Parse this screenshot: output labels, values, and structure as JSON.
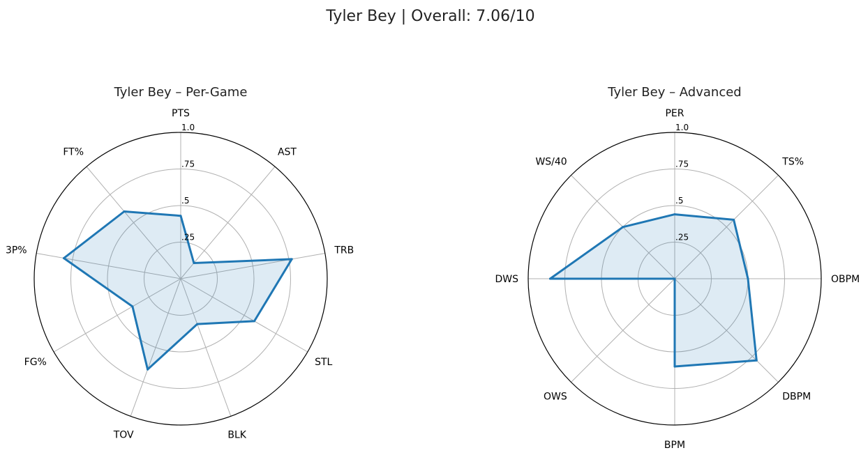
{
  "figure": {
    "suptitle": "Tyler Bey | Overall: 7.06/10"
  },
  "chart_data": [
    {
      "type": "radar",
      "title": "Tyler Bey – Per-Game",
      "axes": [
        "PTS",
        "AST",
        "TRB",
        "STL",
        "BLK",
        "TOV",
        "FG%",
        "3P%",
        "FT%"
      ],
      "values": [
        0.43,
        0.14,
        0.77,
        0.58,
        0.33,
        0.66,
        0.38,
        0.81,
        0.6
      ],
      "rmax": 1.0,
      "tick_values": [
        0.25,
        0.5,
        0.75,
        1.0
      ],
      "tick_labels": [
        ".25",
        ".5",
        ".75",
        "1.0"
      ],
      "grid": true,
      "line_color": "#1f77b4",
      "fill_color": "#1f77b4"
    },
    {
      "type": "radar",
      "title": "Tyler Bey – Advanced",
      "axes": [
        "PER",
        "TS%",
        "OBPM",
        "DBPM",
        "BPM",
        "OWS",
        "DWS",
        "WS/40"
      ],
      "values": [
        0.44,
        0.57,
        0.5,
        0.79,
        0.6,
        0.0,
        0.85,
        0.5
      ],
      "rmax": 1.0,
      "tick_values": [
        0.25,
        0.5,
        0.75,
        1.0
      ],
      "tick_labels": [
        ".25",
        ".5",
        ".75",
        "1.0"
      ],
      "grid": true,
      "line_color": "#1f77b4",
      "fill_color": "#1f77b4"
    }
  ]
}
